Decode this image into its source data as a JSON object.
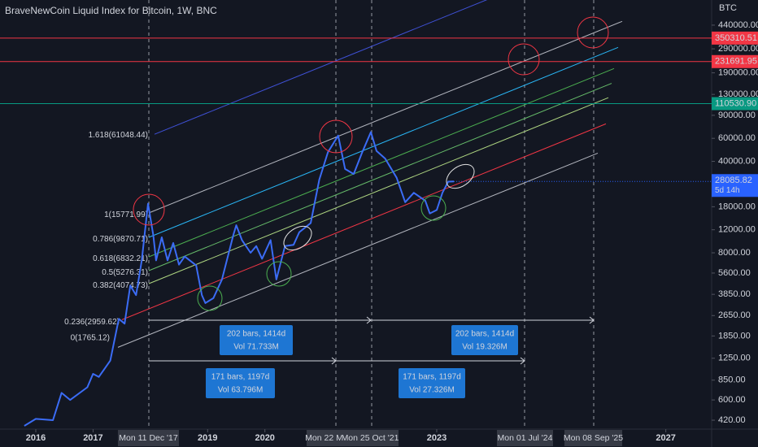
{
  "chart_data": {
    "type": "line",
    "title": "BraveNewCoin Liquid Index for Bitcoin, 1W, BNC",
    "y_unit": "BTC",
    "log_scale": true,
    "color": "#3b6cf5",
    "x": [
      2015.8,
      2016.0,
      2016.3,
      2016.45,
      2016.6,
      2016.9,
      2017.0,
      2017.1,
      2017.3,
      2017.45,
      2017.55,
      2017.65,
      2017.75,
      2017.85,
      2017.96,
      2018.05,
      2018.1,
      2018.2,
      2018.3,
      2018.4,
      2018.5,
      2018.6,
      2018.8,
      2018.9,
      2018.96,
      2019.1,
      2019.25,
      2019.45,
      2019.5,
      2019.6,
      2019.75,
      2019.85,
      2019.95,
      2020.1,
      2020.2,
      2020.35,
      2020.5,
      2020.6,
      2020.8,
      2020.95,
      2021.1,
      2021.28,
      2021.4,
      2021.55,
      2021.7,
      2021.85,
      2021.95,
      2022.1,
      2022.3,
      2022.45,
      2022.6,
      2022.8,
      2022.88,
      2023.0,
      2023.1,
      2023.2,
      2023.3
    ],
    "values": [
      380,
      430,
      420,
      680,
      600,
      750,
      950,
      900,
      1200,
      2500,
      2300,
      4500,
      3800,
      7000,
      19000,
      11000,
      7000,
      10500,
      7000,
      9500,
      6500,
      7500,
      6400,
      3800,
      3300,
      3600,
      5000,
      11000,
      13000,
      10000,
      8000,
      9000,
      7200,
      10000,
      5000,
      9000,
      9200,
      11500,
      13500,
      29000,
      47000,
      63000,
      35000,
      32000,
      47000,
      67000,
      48000,
      42000,
      30000,
      19500,
      23000,
      20000,
      16000,
      17000,
      23000,
      28000,
      28085
    ],
    "xlim": [
      2015.375,
      2027.8
    ],
    "xticks": [
      2016,
      2017,
      2019,
      2020,
      2023,
      2027
    ],
    "ylim": [
      359,
      685000
    ],
    "yticks": [
      {
        "value": 440000,
        "label": "440000.00"
      },
      {
        "value": 290000,
        "label": "290000.00"
      },
      {
        "value": 190000,
        "label": "190000.00"
      },
      {
        "value": 130000,
        "label": "130000.00"
      },
      {
        "value": 90000,
        "label": "90000.00"
      },
      {
        "value": 60000,
        "label": "60000.00"
      },
      {
        "value": 40000,
        "label": "40000.00"
      },
      {
        "value": 18000,
        "label": "18000.00"
      },
      {
        "value": 12000,
        "label": "12000.00"
      },
      {
        "value": 8000,
        "label": "8000.00"
      },
      {
        "value": 5600,
        "label": "5600.00"
      },
      {
        "value": 3850,
        "label": "3850.00"
      },
      {
        "value": 2650,
        "label": "2650.00"
      },
      {
        "value": 1850,
        "label": "1850.00"
      },
      {
        "value": 1250,
        "label": "1250.00"
      },
      {
        "value": 850,
        "label": "850.00"
      },
      {
        "value": 600,
        "label": "600.00"
      },
      {
        "value": 420,
        "label": "420.00"
      }
    ],
    "levels": [
      {
        "value": 350310.51,
        "label": "350310.51",
        "color": "#f23645"
      },
      {
        "value": 231691.95,
        "label": "231691.95",
        "color": "#f23645"
      },
      {
        "value": 110530.9,
        "label": "110530.90",
        "color": "#089981"
      }
    ],
    "last_price": {
      "value": 28085.82,
      "countdown": "5d 14h",
      "color": "#2962ff"
    },
    "fib_labels": [
      "1.618(61048.44)",
      "1(15771.99)",
      "0.786(9870.71)",
      "0.618(6832.21)",
      "0.5(5276.31)",
      "0.382(4074.73)",
      "0.236(2959.62)",
      "0(1765.12)"
    ],
    "date_labels": [
      "Mon 11 Dec '17",
      "Mon 22 M",
      "Mon 25 Oct '21",
      "Mon 01 Jul '24",
      "Mon 08 Sep '25"
    ],
    "measures": [
      {
        "bars": "202 bars, 1414d",
        "vol": "Vol 71.733M"
      },
      {
        "bars": "202 bars, 1414d",
        "vol": "Vol 19.326M"
      },
      {
        "bars": "171 bars, 1197d",
        "vol": "Vol 63.796M"
      },
      {
        "bars": "171 bars, 1197d",
        "vol": "Vol 27.326M"
      }
    ]
  }
}
